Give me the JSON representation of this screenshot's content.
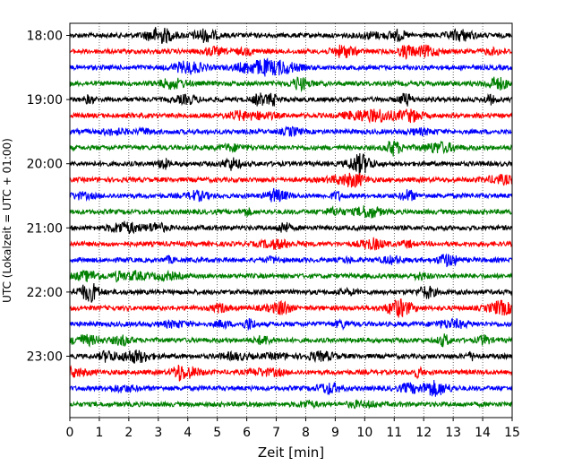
{
  "chart_data": {
    "type": "line",
    "title": "",
    "xlabel": "Zeit  [min]",
    "ylabel": "UTC (Lokalzeit = UTC + 01:00)",
    "xlim": [
      0,
      15
    ],
    "x_ticks": [
      "0",
      "1",
      "2",
      "3",
      "4",
      "5",
      "6",
      "7",
      "8",
      "9",
      "10",
      "11",
      "12",
      "13",
      "14",
      "15"
    ],
    "y_ticks": [
      "18:00",
      "19:00",
      "20:00",
      "21:00",
      "22:00",
      "23:00"
    ],
    "grid": "vertical dotted lines at each minute",
    "trace_start_times": [
      "18:00",
      "18:15",
      "18:30",
      "18:45",
      "19:00",
      "19:15",
      "19:30",
      "19:45",
      "20:00",
      "20:15",
      "20:30",
      "20:45",
      "21:00",
      "21:15",
      "21:30",
      "21:45",
      "22:00",
      "22:15",
      "22:30",
      "22:45",
      "23:00",
      "23:15",
      "23:30",
      "23:45"
    ],
    "trace_duration_min": 15,
    "trace_colors": [
      "#000000",
      "#ff0000",
      "#0000ff",
      "#008000"
    ],
    "series_type": "helicorder seismogram traces, one per 15-minute interval"
  }
}
